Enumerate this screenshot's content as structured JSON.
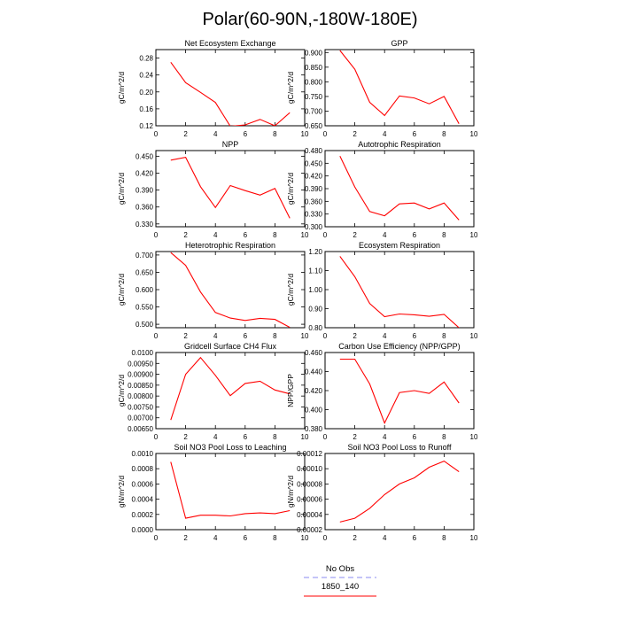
{
  "title": "Polar(60-90N,-180W-180E)",
  "legend": {
    "entries": [
      {
        "label": "No Obs",
        "color": "#8a8af0",
        "dash": true
      },
      {
        "label": "1850_140",
        "color": "#ff0000",
        "dash": false
      }
    ]
  },
  "colors": {
    "line": "#ff0000"
  },
  "chart_data": [
    {
      "type": "line",
      "title": "Net Ecosystem Exchange",
      "ylabel": "gC/m^2/d",
      "xlim": [
        0,
        10
      ],
      "ylim": [
        0.12,
        0.3
      ],
      "xticks": [
        0,
        2,
        4,
        6,
        8,
        10
      ],
      "yticks": [
        0.12,
        0.16,
        0.2,
        0.24,
        0.28
      ],
      "yticklabels": [
        "0.12",
        "0.16",
        "0.20",
        "0.24",
        "0.28"
      ],
      "x": [
        1,
        2,
        3,
        4,
        5,
        6,
        7,
        8,
        9
      ],
      "y": [
        0.27,
        0.222,
        0.199,
        0.175,
        0.119,
        0.122,
        0.135,
        0.12,
        0.151
      ]
    },
    {
      "type": "line",
      "title": "GPP",
      "ylabel": "gC/m^2/d",
      "xlim": [
        0,
        10
      ],
      "ylim": [
        0.65,
        0.91
      ],
      "xticks": [
        0,
        2,
        4,
        6,
        8,
        10
      ],
      "yticks": [
        0.65,
        0.7,
        0.75,
        0.8,
        0.85,
        0.9
      ],
      "yticklabels": [
        "0.650",
        "0.700",
        "0.750",
        "0.800",
        "0.850",
        "0.900"
      ],
      "x": [
        1,
        2,
        3,
        4,
        5,
        6,
        7,
        8,
        9
      ],
      "y": [
        0.907,
        0.843,
        0.73,
        0.685,
        0.752,
        0.745,
        0.725,
        0.75,
        0.657
      ]
    },
    {
      "type": "line",
      "title": "NPP",
      "ylabel": "gC/m^2/d",
      "xlim": [
        0,
        10
      ],
      "ylim": [
        0.325,
        0.46
      ],
      "xticks": [
        0,
        2,
        4,
        6,
        8,
        10
      ],
      "yticks": [
        0.33,
        0.36,
        0.39,
        0.42,
        0.45
      ],
      "yticklabels": [
        "0.330",
        "0.360",
        "0.390",
        "0.420",
        "0.450"
      ],
      "x": [
        1,
        2,
        3,
        4,
        5,
        6,
        7,
        8,
        9
      ],
      "y": [
        0.443,
        0.448,
        0.396,
        0.359,
        0.398,
        0.389,
        0.381,
        0.393,
        0.34
      ]
    },
    {
      "type": "line",
      "title": "Autotrophic Respiration",
      "ylabel": "gC/m^2/d",
      "xlim": [
        0,
        10
      ],
      "ylim": [
        0.3,
        0.48
      ],
      "xticks": [
        0,
        2,
        4,
        6,
        8,
        10
      ],
      "yticks": [
        0.3,
        0.33,
        0.36,
        0.39,
        0.42,
        0.45,
        0.48
      ],
      "yticklabels": [
        "0.300",
        "0.330",
        "0.360",
        "0.390",
        "0.420",
        "0.450",
        "0.480"
      ],
      "x": [
        1,
        2,
        3,
        4,
        5,
        6,
        7,
        8,
        9
      ],
      "y": [
        0.467,
        0.394,
        0.336,
        0.326,
        0.354,
        0.356,
        0.342,
        0.356,
        0.316
      ]
    },
    {
      "type": "line",
      "title": "Heterotrophic Respiration",
      "ylabel": "gC/m^2/d",
      "xlim": [
        0,
        10
      ],
      "ylim": [
        0.49,
        0.71
      ],
      "xticks": [
        0,
        2,
        4,
        6,
        8,
        10
      ],
      "yticks": [
        0.5,
        0.55,
        0.6,
        0.65,
        0.7
      ],
      "yticklabels": [
        "0.500",
        "0.550",
        "0.600",
        "0.650",
        "0.700"
      ],
      "x": [
        1,
        2,
        3,
        4,
        5,
        6,
        7,
        8,
        9
      ],
      "y": [
        0.707,
        0.67,
        0.593,
        0.534,
        0.518,
        0.511,
        0.517,
        0.514,
        0.491
      ]
    },
    {
      "type": "line",
      "title": "Ecosystem Respiration",
      "ylabel": "gC/m^2/d",
      "xlim": [
        0,
        10
      ],
      "ylim": [
        0.8,
        1.2
      ],
      "xticks": [
        0,
        2,
        4,
        6,
        8,
        10
      ],
      "yticks": [
        0.8,
        0.9,
        1.0,
        1.1,
        1.2
      ],
      "yticklabels": [
        "0.80",
        "0.90",
        "1.00",
        "1.10",
        "1.20"
      ],
      "x": [
        1,
        2,
        3,
        4,
        5,
        6,
        7,
        8,
        9
      ],
      "y": [
        1.175,
        1.068,
        0.927,
        0.858,
        0.872,
        0.868,
        0.86,
        0.87,
        0.8
      ]
    },
    {
      "type": "line",
      "title": "Gridcell Surface CH4 Flux",
      "ylabel": "gC/m^2/d",
      "xlim": [
        0,
        10
      ],
      "ylim": [
        0.0065,
        0.01
      ],
      "xticks": [
        0,
        2,
        4,
        6,
        8,
        10
      ],
      "yticks": [
        0.0065,
        0.007,
        0.0075,
        0.008,
        0.0085,
        0.009,
        0.0095,
        0.01
      ],
      "yticklabels": [
        "0.00650",
        "0.00700",
        "0.00750",
        "0.00800",
        "0.00850",
        "0.00900",
        "0.00950",
        "0.0100"
      ],
      "x": [
        1,
        2,
        3,
        4,
        5,
        6,
        7,
        8,
        9
      ],
      "y": [
        0.0069,
        0.009,
        0.00977,
        0.00895,
        0.00802,
        0.00858,
        0.00868,
        0.00828,
        0.0081
      ]
    },
    {
      "type": "line",
      "title": "Carbon Use Efficiency (NPP/GPP)",
      "ylabel": "NPP/GPP",
      "xlim": [
        0,
        10
      ],
      "ylim": [
        0.38,
        0.46
      ],
      "xticks": [
        0,
        2,
        4,
        6,
        8,
        10
      ],
      "yticks": [
        0.38,
        0.4,
        0.42,
        0.44,
        0.46
      ],
      "yticklabels": [
        "0.380",
        "0.400",
        "0.420",
        "0.440",
        "0.460"
      ],
      "x": [
        1,
        2,
        3,
        4,
        5,
        6,
        7,
        8,
        9
      ],
      "y": [
        0.453,
        0.453,
        0.427,
        0.386,
        0.418,
        0.42,
        0.417,
        0.429,
        0.407
      ]
    },
    {
      "type": "line",
      "title": "Soil NO3 Pool Loss to Leaching",
      "ylabel": "gN/m^2/d",
      "xlim": [
        0,
        10
      ],
      "ylim": [
        0.0,
        0.001
      ],
      "xticks": [
        0,
        2,
        4,
        6,
        8,
        10
      ],
      "yticks": [
        0.0,
        0.0002,
        0.0004,
        0.0006,
        0.0008,
        0.001
      ],
      "yticklabels": [
        "0.0000",
        "0.0002",
        "0.0004",
        "0.0006",
        "0.0008",
        "0.0010"
      ],
      "x": [
        1,
        2,
        3,
        4,
        5,
        6,
        7,
        8,
        9
      ],
      "y": [
        0.00089,
        0.00015,
        0.00019,
        0.00019,
        0.00018,
        0.00021,
        0.00022,
        0.00021,
        0.00025
      ]
    },
    {
      "type": "line",
      "title": "Soil NO3 Pool Loss to Runoff",
      "ylabel": "gN/m^2/d",
      "xlim": [
        0,
        10
      ],
      "ylim": [
        2e-05,
        0.00012
      ],
      "xticks": [
        0,
        2,
        4,
        6,
        8,
        10
      ],
      "yticks": [
        2e-05,
        4e-05,
        6e-05,
        8e-05,
        0.0001,
        0.00012
      ],
      "yticklabels": [
        "0.00002",
        "0.00004",
        "0.00006",
        "0.00008",
        "0.00010",
        "0.00012"
      ],
      "x": [
        1,
        2,
        3,
        4,
        5,
        6,
        7,
        8,
        9
      ],
      "y": [
        3e-05,
        3.5e-05,
        4.8e-05,
        6.6e-05,
        8e-05,
        8.8e-05,
        0.000102,
        0.00011,
        9.6e-05
      ]
    }
  ]
}
